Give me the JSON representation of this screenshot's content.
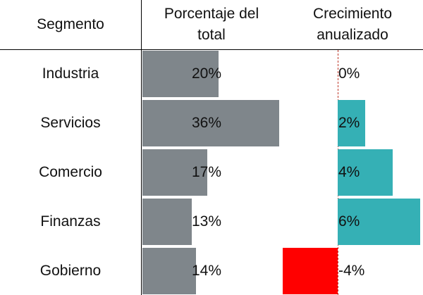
{
  "chart_data": {
    "type": "table",
    "columns": [
      "Segmento",
      "Porcentaje del total",
      "Crecimiento anualizado"
    ],
    "categories": [
      "Industria",
      "Servicios",
      "Comercio",
      "Finanzas",
      "Gobierno"
    ],
    "series": [
      {
        "name": "Porcentaje del total",
        "values": [
          20,
          36,
          17,
          13,
          14
        ],
        "labels": [
          "20%",
          "36%",
          "17%",
          "13%",
          "14%"
        ],
        "color": "#7f868b"
      },
      {
        "name": "Crecimiento anualizado",
        "values": [
          0,
          2,
          4,
          6,
          -4
        ],
        "labels": [
          "0%",
          "2%",
          "4%",
          "6%",
          "-4%"
        ],
        "color_positive": "#35b0b5",
        "color_negative": "#ff0000"
      }
    ]
  },
  "headers": {
    "segment": "Segmento",
    "share_line1": "Porcentaje del",
    "share_line2": "total",
    "growth_line1": "Crecimiento",
    "growth_line2": "anualizado"
  }
}
